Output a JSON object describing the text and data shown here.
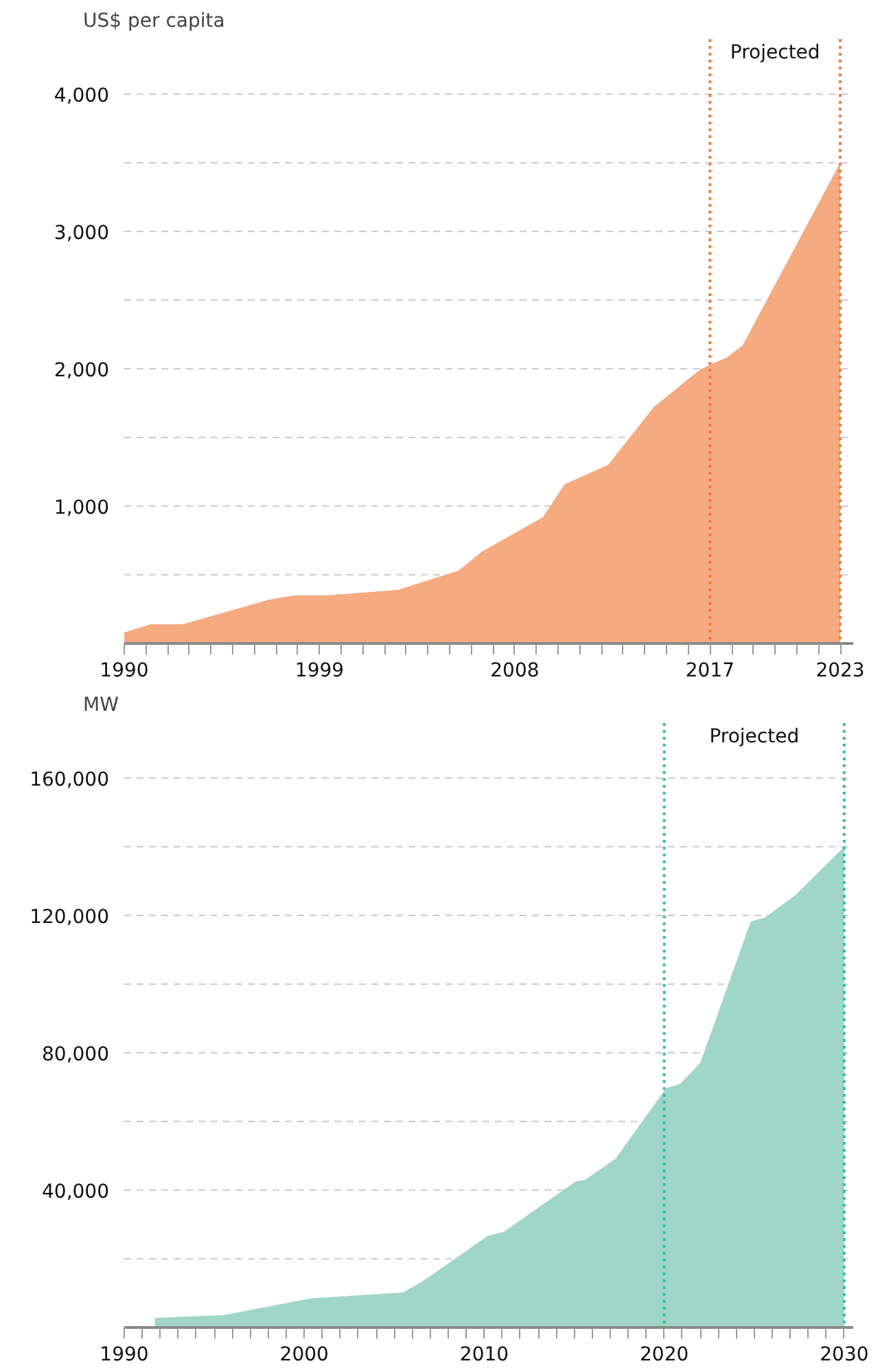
{
  "chart_data": [
    {
      "type": "area",
      "ylabel": "US$ per capita",
      "color": "#f5aa80",
      "x": [
        1990,
        1991.2,
        1992.7,
        1996.7,
        1997.8,
        1999.3,
        2002.6,
        2005.4,
        2006.5,
        2009.3,
        2010.3,
        2012.3,
        2014.4,
        2016.5,
        2017,
        2017.75,
        2018.5,
        2023
      ],
      "values": [
        80,
        140,
        140,
        320,
        350,
        350,
        390,
        530,
        670,
        920,
        1160,
        1300,
        1720,
        1990,
        2030,
        2080,
        2170,
        3500
      ],
      "xlim": [
        1990,
        2023.6
      ],
      "ylim": [
        0,
        4400
      ],
      "xticks": [
        1990,
        {
          "value": 1991,
          "label": null
        },
        {
          "value": 1992,
          "label": null
        },
        {
          "value": 1993,
          "label": null
        },
        {
          "value": 1994,
          "label": null
        },
        {
          "value": 1995,
          "label": null
        },
        {
          "value": 1996,
          "label": null
        },
        {
          "value": 1997,
          "label": null
        },
        {
          "value": 1998,
          "label": null
        },
        1999,
        {
          "value": 2000,
          "label": null
        },
        {
          "value": 2001,
          "label": null
        },
        {
          "value": 2002,
          "label": null
        },
        {
          "value": 2003,
          "label": null
        },
        {
          "value": 2004,
          "label": null
        },
        {
          "value": 2005,
          "label": null
        },
        {
          "value": 2006,
          "label": null
        },
        {
          "value": 2007,
          "label": null
        },
        2008,
        {
          "value": 2009,
          "label": null
        },
        {
          "value": 2010,
          "label": null
        },
        {
          "value": 2011,
          "label": null
        },
        {
          "value": 2012,
          "label": null
        },
        {
          "value": 2013,
          "label": null
        },
        {
          "value": 2014,
          "label": null
        },
        {
          "value": 2015,
          "label": null
        },
        {
          "value": 2016,
          "label": null
        },
        2017,
        {
          "value": 2018,
          "label": null
        },
        {
          "value": 2019,
          "label": null
        },
        {
          "value": 2020,
          "label": null
        },
        {
          "value": 2021,
          "label": null
        },
        {
          "value": 2022,
          "label": null
        },
        2023
      ],
      "yticks": [
        {
          "value": 500,
          "label": null
        },
        {
          "value": 1000,
          "label": "1,000"
        },
        {
          "value": 1500,
          "label": null
        },
        {
          "value": 2000,
          "label": "2,000"
        },
        {
          "value": 2500,
          "label": null
        },
        {
          "value": 3000,
          "label": "3,000"
        },
        {
          "value": 3500,
          "label": null
        },
        {
          "value": 4000,
          "label": "4,000"
        }
      ],
      "grid": "y",
      "ref_lines": [
        {
          "axis": "x",
          "value": 2017,
          "color": "#f07a3c",
          "line_style": "dotted"
        },
        {
          "axis": "x",
          "value": 2023,
          "color": "#f07a3c",
          "line_style": "dotted"
        }
      ],
      "annotations": [
        "Projected"
      ]
    },
    {
      "type": "area",
      "ylabel": "MW",
      "color": "#a0d6c8",
      "x": [
        1991.7,
        1995.5,
        2000.4,
        2005.5,
        2006.7,
        2010.2,
        2011.1,
        2015.1,
        2015.6,
        2017.3,
        2020.1,
        2020.9,
        2022,
        2022.85,
        2024.8,
        2025.6,
        2027.3,
        2030
      ],
      "values": [
        2800,
        3600,
        8500,
        10200,
        13900,
        26700,
        27900,
        42600,
        43000,
        49200,
        69700,
        71000,
        77100,
        89500,
        118200,
        119400,
        126000,
        140000
      ],
      "xlim": [
        1990,
        2030.5
      ],
      "ylim": [
        0,
        176000
      ],
      "xticks": [
        1990,
        {
          "value": 1991,
          "label": null
        },
        {
          "value": 1992,
          "label": null
        },
        {
          "value": 1993,
          "label": null
        },
        {
          "value": 1994,
          "label": null
        },
        {
          "value": 1995,
          "label": null
        },
        {
          "value": 1996,
          "label": null
        },
        {
          "value": 1997,
          "label": null
        },
        {
          "value": 1998,
          "label": null
        },
        {
          "value": 1999,
          "label": null
        },
        2000,
        {
          "value": 2001,
          "label": null
        },
        {
          "value": 2002,
          "label": null
        },
        {
          "value": 2003,
          "label": null
        },
        {
          "value": 2004,
          "label": null
        },
        {
          "value": 2005,
          "label": null
        },
        {
          "value": 2006,
          "label": null
        },
        {
          "value": 2007,
          "label": null
        },
        {
          "value": 2008,
          "label": null
        },
        {
          "value": 2009,
          "label": null
        },
        2010,
        {
          "value": 2011,
          "label": null
        },
        {
          "value": 2012,
          "label": null
        },
        {
          "value": 2013,
          "label": null
        },
        {
          "value": 2014,
          "label": null
        },
        {
          "value": 2015,
          "label": null
        },
        {
          "value": 2016,
          "label": null
        },
        {
          "value": 2017,
          "label": null
        },
        {
          "value": 2018,
          "label": null
        },
        {
          "value": 2019,
          "label": null
        },
        2020,
        {
          "value": 2021,
          "label": null
        },
        {
          "value": 2022,
          "label": null
        },
        {
          "value": 2023,
          "label": null
        },
        {
          "value": 2024,
          "label": null
        },
        {
          "value": 2025,
          "label": null
        },
        {
          "value": 2026,
          "label": null
        },
        {
          "value": 2027,
          "label": null
        },
        {
          "value": 2028,
          "label": null
        },
        {
          "value": 2029,
          "label": null
        },
        2030
      ],
      "yticks": [
        {
          "value": 20000,
          "label": null
        },
        {
          "value": 40000,
          "label": "40,000"
        },
        {
          "value": 60000,
          "label": null
        },
        {
          "value": 80000,
          "label": "80,000"
        },
        {
          "value": 100000,
          "label": null
        },
        {
          "value": 120000,
          "label": "120,000"
        },
        {
          "value": 140000,
          "label": null
        },
        {
          "value": 160000,
          "label": "160,000"
        }
      ],
      "grid": "y",
      "ref_lines": [
        {
          "axis": "x",
          "value": 2020,
          "color": "#2cc0aa",
          "line_style": "dotted"
        },
        {
          "axis": "x",
          "value": 2030,
          "color": "#2cc0aa",
          "line_style": "dotted"
        }
      ],
      "annotations": [
        "Projected"
      ]
    }
  ]
}
